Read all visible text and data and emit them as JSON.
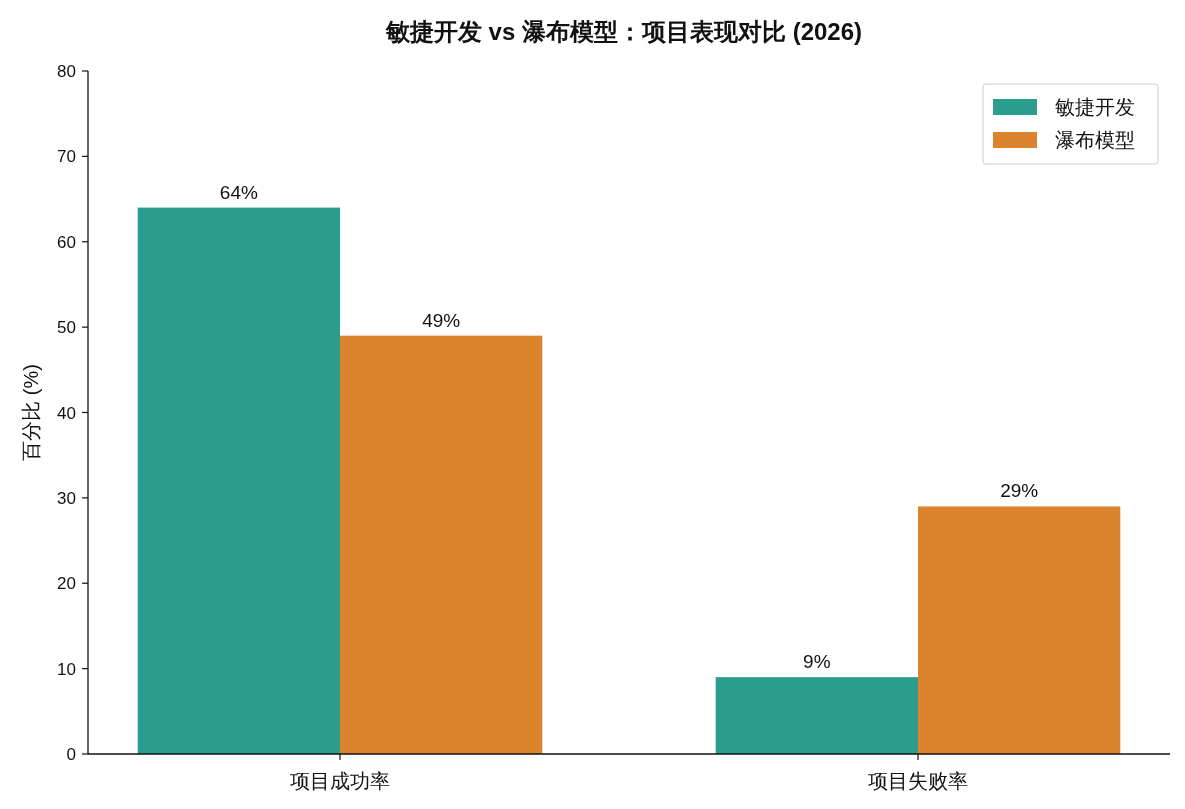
{
  "chart_data": {
    "type": "bar",
    "title": "敏捷开发 vs 瀑布模型：项目表现对比 (2026)",
    "ylabel": "百分比 (%)",
    "categories": [
      "项目成功率",
      "项目失败率"
    ],
    "series": [
      {
        "name": "敏捷开发",
        "color": "#2a9d8f",
        "values": [
          64,
          9
        ],
        "value_labels": [
          "64%",
          "9%"
        ]
      },
      {
        "name": "瀑布模型",
        "color": "#db842d",
        "values": [
          49,
          29
        ],
        "value_labels": [
          "49%",
          "29%"
        ]
      }
    ],
    "ylim": [
      0,
      80
    ],
    "yticks": [
      0,
      10,
      20,
      30,
      40,
      50,
      60,
      70,
      80
    ],
    "legend": "top right"
  }
}
